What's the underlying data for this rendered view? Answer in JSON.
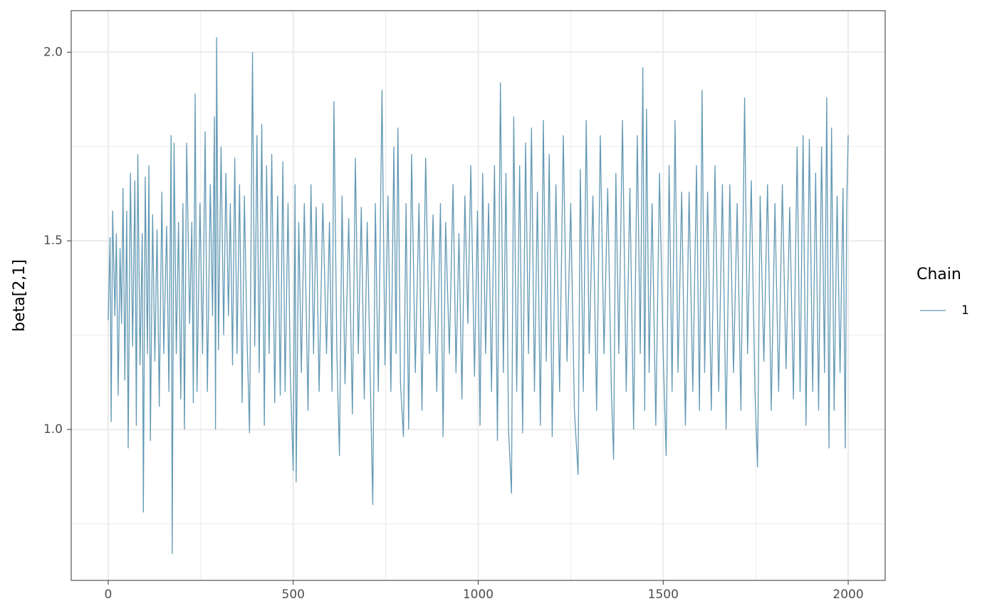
{
  "chart_data": {
    "type": "line",
    "y_label": "beta[2,1]",
    "legend_title": "Chain",
    "legend": "right",
    "grid": true,
    "xlim": [
      -100,
      2100
    ],
    "xticks": [
      0,
      500,
      1000,
      1500,
      2000
    ],
    "x_minor_grid": [
      250,
      750,
      1250,
      1750
    ],
    "ylim": [
      0.6,
      2.11
    ],
    "yticks": [
      {
        "value": 1.0,
        "label": "1.0"
      },
      {
        "value": 1.5,
        "label": "1.5"
      },
      {
        "value": 2.0,
        "label": "2.0"
      }
    ],
    "y_minor_grid": [
      0.75,
      1.25,
      1.75
    ],
    "x": [
      0,
      5,
      8,
      12,
      18,
      22,
      27,
      32,
      36,
      40,
      45,
      50,
      54,
      60,
      66,
      72,
      76,
      80,
      86,
      92,
      95,
      100,
      106,
      110,
      114,
      120,
      126,
      132,
      138,
      145,
      150,
      158,
      164,
      170,
      173,
      178,
      184,
      190,
      196,
      202,
      206,
      212,
      220,
      226,
      230,
      235,
      240,
      248,
      255,
      262,
      268,
      276,
      282,
      287,
      290,
      293,
      298,
      305,
      312,
      318,
      325,
      330,
      336,
      342,
      348,
      355,
      362,
      368,
      375,
      382,
      390,
      396,
      402,
      408,
      415,
      422,
      428,
      435,
      442,
      450,
      458,
      465,
      472,
      478,
      486,
      492,
      500,
      505,
      508,
      515,
      522,
      530,
      540,
      548,
      555,
      562,
      570,
      580,
      590,
      598,
      605,
      610,
      618,
      625,
      632,
      640,
      650,
      660,
      668,
      676,
      684,
      692,
      700,
      708,
      715,
      722,
      730,
      740,
      748,
      756,
      764,
      772,
      778,
      783,
      790,
      798,
      805,
      812,
      820,
      830,
      840,
      848,
      858,
      868,
      878,
      888,
      898,
      905,
      912,
      922,
      932,
      940,
      948,
      956,
      964,
      972,
      980,
      990,
      998,
      1005,
      1012,
      1020,
      1028,
      1036,
      1044,
      1052,
      1060,
      1068,
      1075,
      1082,
      1090,
      1096,
      1104,
      1112,
      1120,
      1128,
      1136,
      1144,
      1152,
      1160,
      1168,
      1176,
      1184,
      1192,
      1200,
      1210,
      1220,
      1230,
      1240,
      1250,
      1260,
      1270,
      1276,
      1284,
      1292,
      1300,
      1310,
      1320,
      1330,
      1340,
      1350,
      1360,
      1366,
      1372,
      1380,
      1390,
      1400,
      1410,
      1420,
      1430,
      1438,
      1445,
      1450,
      1455,
      1462,
      1470,
      1480,
      1490,
      1500,
      1508,
      1516,
      1524,
      1532,
      1540,
      1550,
      1560,
      1570,
      1580,
      1590,
      1598,
      1605,
      1612,
      1620,
      1630,
      1640,
      1650,
      1660,
      1670,
      1680,
      1690,
      1700,
      1710,
      1720,
      1728,
      1738,
      1748,
      1755,
      1762,
      1772,
      1782,
      1792,
      1802,
      1812,
      1822,
      1832,
      1842,
      1852,
      1862,
      1870,
      1878,
      1886,
      1895,
      1904,
      1912,
      1920,
      1928,
      1936,
      1942,
      1948,
      1955,
      1962,
      1970,
      1978,
      1986,
      1992,
      1996,
      2000
    ],
    "series": [
      {
        "name": "1",
        "color": "#6399b4",
        "values": [
          1.29,
          1.51,
          1.02,
          1.58,
          1.3,
          1.52,
          1.09,
          1.48,
          1.28,
          1.64,
          1.13,
          1.58,
          0.95,
          1.68,
          1.22,
          1.66,
          1.01,
          1.73,
          1.17,
          1.52,
          0.78,
          1.67,
          1.2,
          1.7,
          0.97,
          1.57,
          1.18,
          1.53,
          1.06,
          1.63,
          1.2,
          1.54,
          1.1,
          1.78,
          0.67,
          1.76,
          1.2,
          1.55,
          1.08,
          1.6,
          1.0,
          1.76,
          1.28,
          1.55,
          1.07,
          1.89,
          1.1,
          1.6,
          1.2,
          1.79,
          1.1,
          1.65,
          1.3,
          1.83,
          1.0,
          2.04,
          1.21,
          1.75,
          1.25,
          1.68,
          1.3,
          1.6,
          1.17,
          1.72,
          1.2,
          1.65,
          1.07,
          1.62,
          1.25,
          0.99,
          2.0,
          1.22,
          1.78,
          1.15,
          1.81,
          1.01,
          1.7,
          1.2,
          1.73,
          1.07,
          1.62,
          1.09,
          1.71,
          1.1,
          1.6,
          1.15,
          0.89,
          1.65,
          0.86,
          1.55,
          1.15,
          1.6,
          1.05,
          1.65,
          1.2,
          1.59,
          1.1,
          1.6,
          1.2,
          1.55,
          1.1,
          1.87,
          1.2,
          0.93,
          1.62,
          1.12,
          1.56,
          1.04,
          1.72,
          1.2,
          1.59,
          1.08,
          1.55,
          1.15,
          0.8,
          1.6,
          1.1,
          1.9,
          1.17,
          1.62,
          1.1,
          1.75,
          1.2,
          1.8,
          1.12,
          0.98,
          1.6,
          1.0,
          1.73,
          1.15,
          1.6,
          1.05,
          1.72,
          1.2,
          1.57,
          1.1,
          1.6,
          0.98,
          1.55,
          1.2,
          1.65,
          1.15,
          1.52,
          1.08,
          1.62,
          1.28,
          1.7,
          1.14,
          1.58,
          1.01,
          1.68,
          1.2,
          1.6,
          1.1,
          1.7,
          0.97,
          1.92,
          1.15,
          1.68,
          1.0,
          0.83,
          1.83,
          1.1,
          1.7,
          0.99,
          1.76,
          1.2,
          1.8,
          1.1,
          1.63,
          1.01,
          1.82,
          1.18,
          1.73,
          0.98,
          1.65,
          1.1,
          1.78,
          1.18,
          1.6,
          1.05,
          0.88,
          1.69,
          1.1,
          1.82,
          1.2,
          1.62,
          1.05,
          1.78,
          1.2,
          1.64,
          1.1,
          0.92,
          1.68,
          1.2,
          1.82,
          1.1,
          1.64,
          1.0,
          1.78,
          1.2,
          1.96,
          1.05,
          1.85,
          1.15,
          1.6,
          1.01,
          1.68,
          1.2,
          0.93,
          1.7,
          1.1,
          1.82,
          1.15,
          1.63,
          1.01,
          1.63,
          1.1,
          1.7,
          1.05,
          1.9,
          1.15,
          1.63,
          1.05,
          1.7,
          1.1,
          1.65,
          1.0,
          1.65,
          1.15,
          1.6,
          1.05,
          1.88,
          1.2,
          1.66,
          1.1,
          0.9,
          1.62,
          1.18,
          1.65,
          1.05,
          1.6,
          1.1,
          1.65,
          1.16,
          1.59,
          1.08,
          1.75,
          1.1,
          1.78,
          1.01,
          1.77,
          1.1,
          1.68,
          1.05,
          1.75,
          1.15,
          1.88,
          0.95,
          1.8,
          1.05,
          1.62,
          1.15,
          1.64,
          0.95,
          1.6,
          1.78
        ]
      }
    ]
  }
}
